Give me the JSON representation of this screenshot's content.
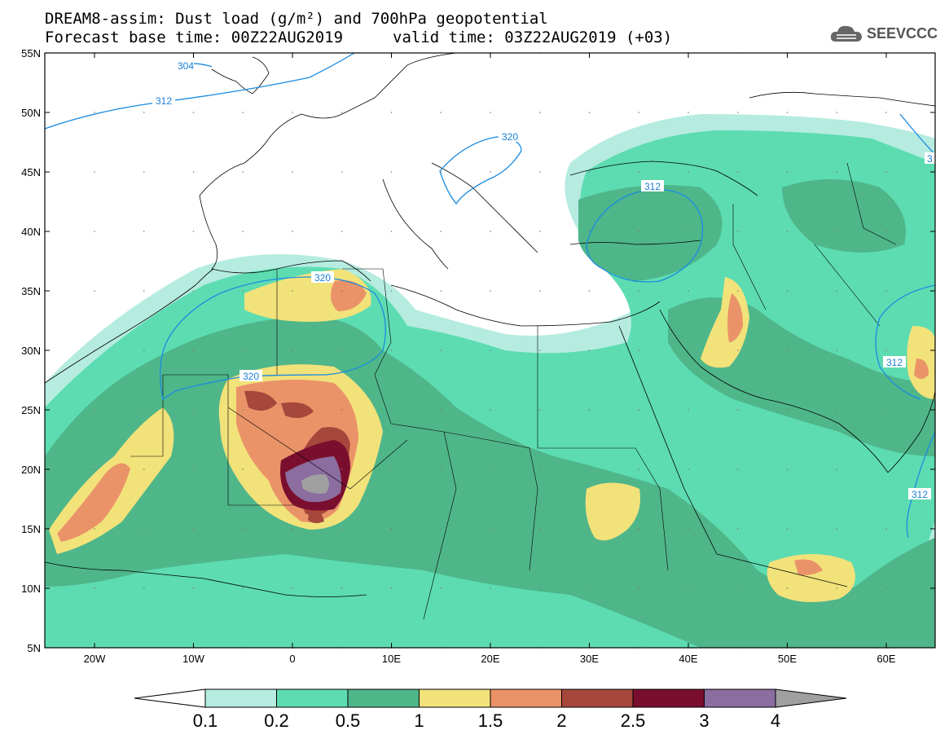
{
  "header": {
    "title_line1": "DREAM8-assim: Dust load (g/m²) and 700hPa geopotential",
    "title_line2": "Forecast base time: 00Z22AUG2019",
    "valid_time": "valid time: 03Z22AUG2019 (+03)"
  },
  "logo": {
    "text": "SEEVCCC",
    "icon": "cloud-icon"
  },
  "map": {
    "lat_labels": [
      "55N",
      "50N",
      "45N",
      "40N",
      "35N",
      "30N",
      "25N",
      "20N",
      "15N",
      "10N",
      "5N"
    ],
    "lon_labels": [
      "20W",
      "10W",
      "0",
      "10E",
      "20E",
      "30E",
      "40E",
      "50E",
      "60E"
    ],
    "contour_labels": [
      "304",
      "312",
      "320",
      "312",
      "320",
      "312",
      "312",
      "312",
      "3"
    ]
  },
  "colorbar": {
    "labels": [
      "0.1",
      "0.2",
      "0.5",
      "1",
      "1.5",
      "2",
      "2.5",
      "3",
      "4"
    ],
    "colors": [
      "#ffffff",
      "#b6ece0",
      "#5ddcb2",
      "#4fb68a",
      "#f2e27a",
      "#ea9368",
      "#a6473c",
      "#7a0e2e",
      "#8c6da0",
      "#a0a0a0"
    ]
  }
}
